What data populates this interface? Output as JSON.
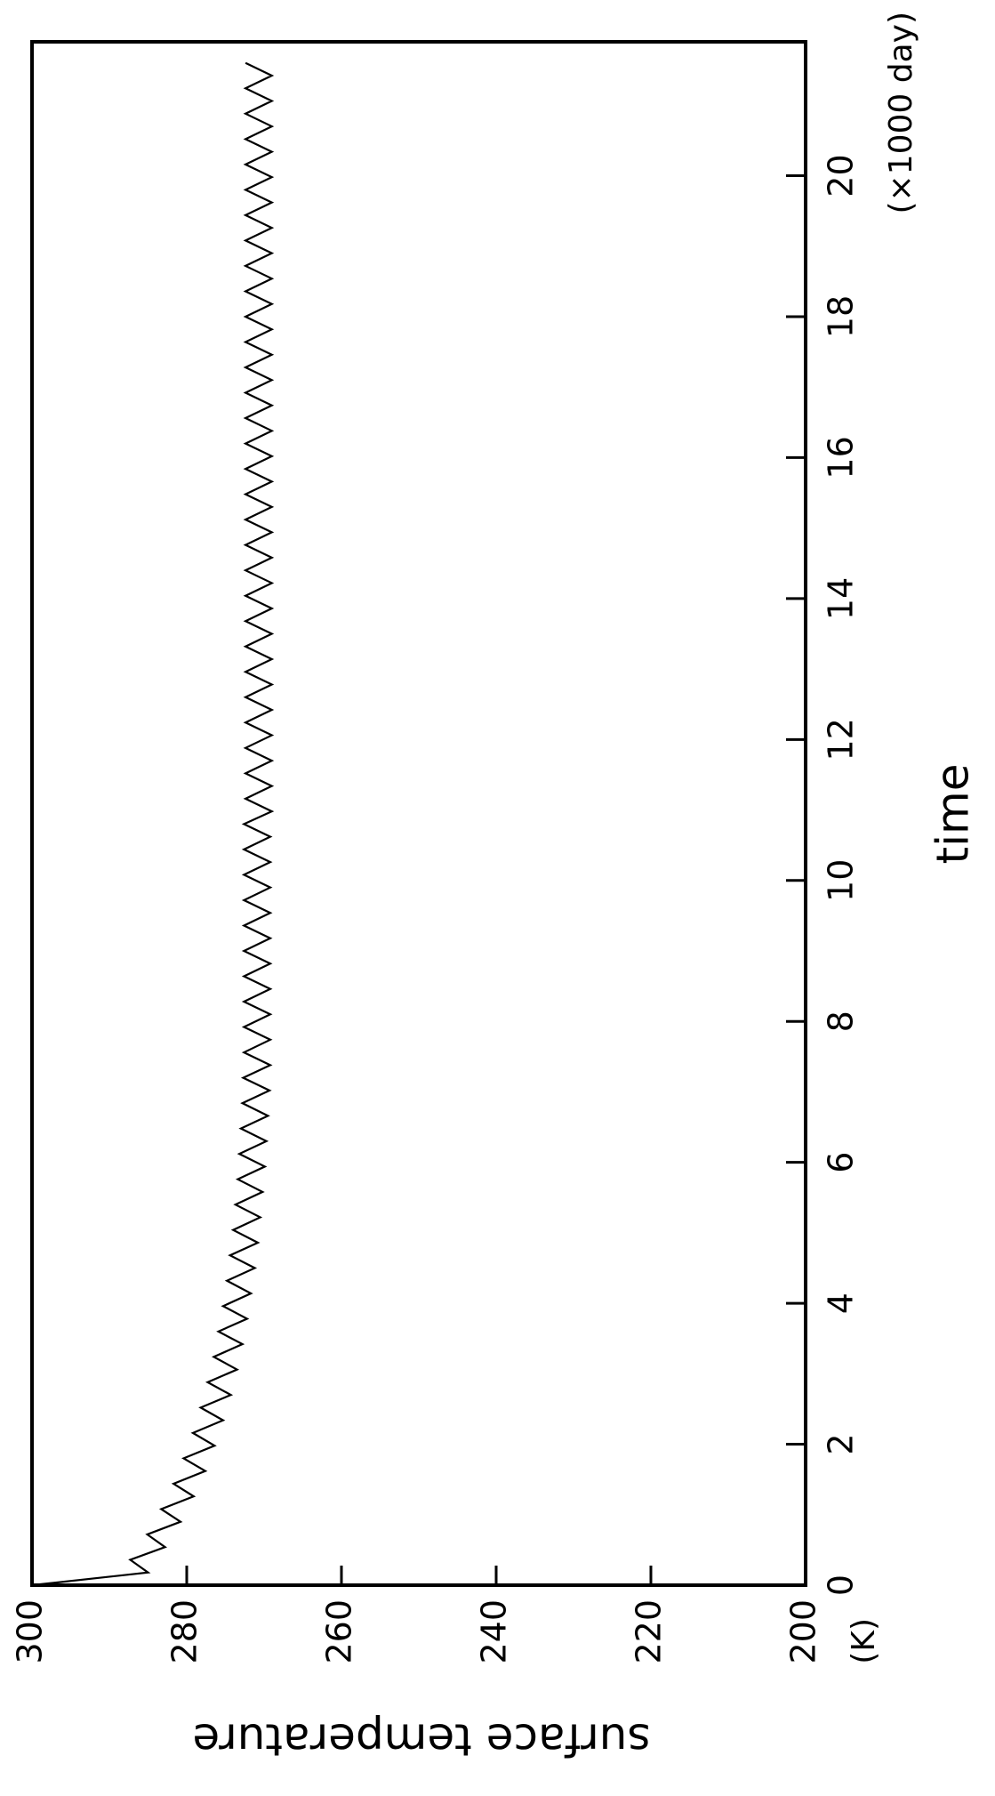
{
  "chart_data": {
    "type": "line",
    "x_label": "time",
    "x_unit": "(×1000 day)",
    "y_label": "surface temperature",
    "y_unit": "(K)",
    "color": "#000000",
    "xlim": [
      0,
      21.9
    ],
    "xticks": [
      0,
      2,
      4,
      6,
      8,
      10,
      12,
      14,
      16,
      18,
      20
    ],
    "ylim": [
      200,
      300
    ],
    "yticks": [
      200,
      220,
      240,
      260,
      280,
      300
    ],
    "x": [
      0,
      0.18,
      0.36,
      0.54,
      0.72,
      0.9,
      1.08,
      1.26,
      1.44,
      1.62,
      1.8,
      1.98,
      2.16,
      2.34,
      2.52,
      2.7,
      2.88,
      3.06,
      3.24,
      3.42,
      3.6,
      3.78,
      3.96,
      4.14,
      4.32,
      4.5,
      4.68,
      4.86,
      5.04,
      5.22,
      5.4,
      5.58,
      5.76,
      5.94,
      6.12,
      6.3,
      6.48,
      6.66,
      6.84,
      7.02,
      7.2,
      7.38,
      7.56,
      7.74,
      7.92,
      8.1,
      8.28,
      8.46,
      8.64,
      8.82,
      9,
      9.18,
      9.36,
      9.54,
      9.72,
      9.9,
      10.08,
      10.26,
      10.44,
      10.62,
      10.8,
      10.98,
      11.16,
      11.34,
      11.52,
      11.7,
      11.88,
      12.06,
      12.24,
      12.42,
      12.6,
      12.78,
      12.96,
      13.14,
      13.32,
      13.5,
      13.68,
      13.86,
      14.04,
      14.22,
      14.4,
      14.58,
      14.76,
      14.94,
      15.12,
      15.3,
      15.48,
      15.66,
      15.84,
      16.02,
      16.2,
      16.38,
      16.56,
      16.74,
      16.92,
      17.1,
      17.28,
      17.46,
      17.64,
      17.82,
      18,
      18.18,
      18.36,
      18.54,
      18.72,
      18.9,
      19.08,
      19.26,
      19.44,
      19.62,
      19.8,
      19.98,
      20.16,
      20.34,
      20.52,
      20.7,
      20.88,
      21.06,
      21.24,
      21.42,
      21.6
    ],
    "values": [
      300,
      285.0,
      287.3,
      282.8,
      285.1,
      280.8,
      283.3,
      279.1,
      281.7,
      277.6,
      280.4,
      276.4,
      279.2,
      275.3,
      278.2,
      274.3,
      277.3,
      273.5,
      276.5,
      272.8,
      275.9,
      272.2,
      275.3,
      271.7,
      274.8,
      271.2,
      274.4,
      270.8,
      274.0,
      270.5,
      273.7,
      270.2,
      273.4,
      269.9,
      273.2,
      269.7,
      273.0,
      269.5,
      272.8,
      269.3,
      272.7,
      269.2,
      272.6,
      269.2,
      272.6,
      269.2,
      272.6,
      269.2,
      272.6,
      269.2,
      272.6,
      269.2,
      272.6,
      269.2,
      272.6,
      269.2,
      272.6,
      269.2,
      272.6,
      269.2,
      272.6,
      269.0,
      272.4,
      269.0,
      272.4,
      269.0,
      272.4,
      269.0,
      272.4,
      269.0,
      272.4,
      269.0,
      272.4,
      269.0,
      272.4,
      269.0,
      272.4,
      269.0,
      272.4,
      269.0,
      272.4,
      269.0,
      272.4,
      269.0,
      272.4,
      269.0,
      272.4,
      269.0,
      272.4,
      269.0,
      272.4,
      269.0,
      272.4,
      269.0,
      272.4,
      269.0,
      272.4,
      269.0,
      272.4,
      269.0,
      272.4,
      269.0,
      272.4,
      269.0,
      272.4,
      269.0,
      272.4,
      269.0,
      272.4,
      269.0,
      272.4,
      269.0,
      272.4,
      269.0,
      272.4,
      269.0,
      272.4,
      269.0,
      272.4,
      269.0,
      272.4
    ]
  }
}
